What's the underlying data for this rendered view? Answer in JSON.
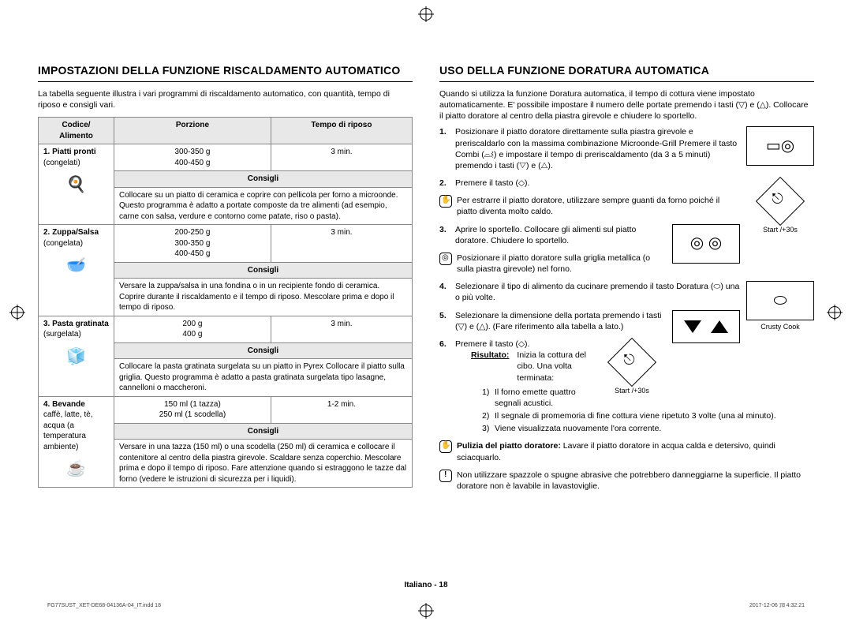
{
  "left": {
    "heading": "IMPOSTAZIONI DELLA FUNZIONE RISCALDAMENTO AUTOMATICO",
    "intro": "La tabella seguente illustra i vari programmi di riscaldamento automatico, con quantità, tempo di riposo e consigli vari.",
    "table": {
      "headers": {
        "col1": "Codice/\nAlimento",
        "col2": "Porzione",
        "col3": "Tempo di riposo"
      },
      "consigli_label": "Consigli",
      "rows": [
        {
          "code": "1. Piatti pronti",
          "sub": "(congelati)",
          "icon": "🍳",
          "porzione": "300-350 g\n400-450 g",
          "riposo": "3 min.",
          "consigli": "Collocare su un piatto di ceramica e coprire con pellicola per forno a microonde. Questo programma è adatto a portate composte da tre alimenti (ad esempio, carne con salsa, verdure e contorno come patate, riso o pasta)."
        },
        {
          "code": "2. Zuppa/Salsa",
          "sub": "(congelata)",
          "icon": "🥣",
          "porzione": "200-250 g\n300-350 g\n400-450 g",
          "riposo": "3 min.",
          "consigli": "Versare la zuppa/salsa in una fondina o in un recipiente fondo di ceramica. Coprire durante il riscaldamento e il tempo di riposo. Mescolare prima e dopo il tempo di riposo."
        },
        {
          "code": "3. Pasta gratinata",
          "sub": "(surgelata)",
          "icon": "🧊",
          "porzione": "200 g\n400 g",
          "riposo": "3 min.",
          "consigli": "Collocare la pasta gratinata surgelata su un piatto in Pyrex Collocare il piatto sulla griglia. Questo programma è adatto a pasta gratinata surgelata tipo lasagne, cannelloni o maccheroni."
        },
        {
          "code": "4. Bevande",
          "sub": "caffè, latte, tè, acqua (a temperatura ambiente)",
          "icon": "☕",
          "porzione": "150 ml (1 tazza)\n250 ml (1 scodella)",
          "riposo": "1-2 min.",
          "consigli": "Versare in una tazza (150 ml) o una scodella (250 ml) di ceramica e collocare il contenitore al centro della piastra girevole. Scaldare senza coperchio. Mescolare prima e dopo il tempo di riposo. Fare attenzione quando si estraggono le tazze dal forno (vedere le istruzioni di sicurezza per i liquidi)."
        }
      ]
    }
  },
  "right": {
    "heading": "USO DELLA FUNZIONE DORATURA AUTOMATICA",
    "intro": "Quando si utilizza la funzione Doratura automatica, il tempo di cottura viene impostato automaticamente. E' possibile impostare il numero delle portate premendo i tasti (▽) e (△). Collocare il piatto doratore al centro della piastra girevole e chiudere lo sportello.",
    "steps": {
      "s1": "Posizionare il piatto doratore direttamente sulla piastra girevole e preriscaldarlo con la massima combinazione Microonde-Grill Premere il tasto Combi (⌓⌇) e impostare il tempo di preriscaldamento (da 3 a 5 minuti) premendo i tasti (▽) e (△).",
      "s2": "Premere il tasto (◇).",
      "s2_sub": "Per estrarre il piatto doratore, utilizzare sempre guanti da forno poiché il piatto diventa molto caldo.",
      "s3": "Aprire lo sportello. Collocare gli alimenti sul piatto doratore. Chiudere lo sportello.",
      "s3_sub": "Posizionare il piatto doratore sulla griglia metallica (o sulla piastra girevole) nel forno.",
      "s4": "Selezionare il tipo di alimento da cucinare premendo il tasto Doratura (⬭) una o più volte.",
      "s5": "Selezionare la dimensione della portata premendo i tasti (▽) e (△). (Fare riferimento alla tabella a lato.)",
      "s6": "Premere il tasto (◇).",
      "ris_label": "Risultato:",
      "ris_text": "Inizia la cottura del cibo. Una volta terminata:",
      "ris_1": "Il forno emette quattro segnali acustici.",
      "ris_2": "Il segnale di promemoria di fine cottura viene ripetuto 3 volte (una al minuto).",
      "ris_3": "Viene visualizzata nuovamente l'ora corrente.",
      "clean_label": "Pulizia del piatto doratore:",
      "clean_text": " Lavare il piatto doratore in acqua calda e detersivo, quindi sciacquarlo.",
      "warn_text": "Non utilizzare spazzole o spugne abrasive che potrebbero danneggiarne la superficie. Il piatto doratore non è lavabile in lavastoviglie."
    },
    "captions": {
      "start30": "Start /+30s",
      "crusty": "Crusty Cook"
    }
  },
  "footer": "Italiano - 18",
  "tinyfooter": {
    "left": "FG77SUST_XET-DE68-04136A-04_IT.indd   18",
    "right": "2017-12-06   ㏾ 4:32:21"
  }
}
